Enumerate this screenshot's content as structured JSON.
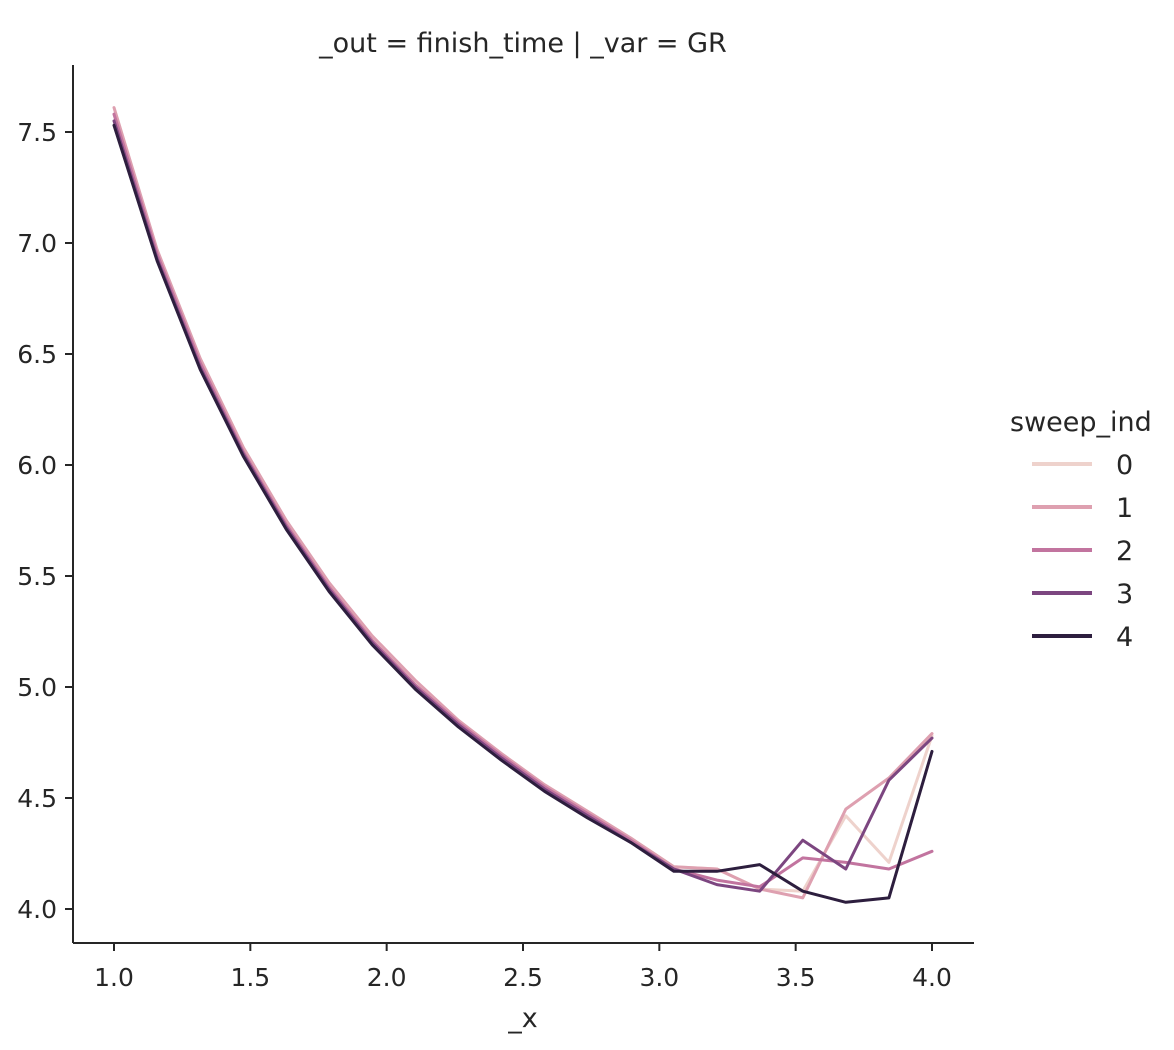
{
  "chart_data": {
    "type": "line",
    "title": "_out = finish_time | _var = GR",
    "xlabel": "_x",
    "ylabel": "",
    "xlim": [
      0.85,
      4.15
    ],
    "ylim": [
      3.85,
      7.8
    ],
    "xticks": [
      "1.0",
      "1.5",
      "2.0",
      "2.5",
      "3.0",
      "3.5",
      "4.0"
    ],
    "yticks": [
      "4.0",
      "4.5",
      "5.0",
      "5.5",
      "6.0",
      "6.5",
      "7.0",
      "7.5"
    ],
    "grid": false,
    "legend": {
      "title": "sweep_ind",
      "position": "right"
    },
    "x": [
      1.0,
      1.158,
      1.316,
      1.474,
      1.632,
      1.789,
      1.947,
      2.105,
      2.263,
      2.421,
      2.579,
      2.737,
      2.895,
      3.053,
      3.211,
      3.368,
      3.526,
      3.684,
      3.842,
      4.0
    ],
    "series": [
      {
        "name": "0",
        "color": "#eed2cc",
        "values": [
          7.58,
          6.95,
          6.46,
          6.06,
          5.73,
          5.45,
          5.21,
          5.01,
          4.84,
          4.69,
          4.55,
          4.43,
          4.32,
          4.19,
          4.18,
          4.09,
          4.08,
          4.42,
          4.21,
          4.78
        ]
      },
      {
        "name": "1",
        "color": "#dea0b0",
        "values": [
          7.61,
          6.97,
          6.48,
          6.08,
          5.75,
          5.47,
          5.23,
          5.03,
          4.85,
          4.7,
          4.56,
          4.44,
          4.32,
          4.19,
          4.18,
          4.09,
          4.05,
          4.45,
          4.59,
          4.79
        ]
      },
      {
        "name": "2",
        "color": "#c2749f",
        "values": [
          7.58,
          6.95,
          6.46,
          6.06,
          5.73,
          5.45,
          5.21,
          5.01,
          4.84,
          4.69,
          4.55,
          4.43,
          4.31,
          4.18,
          4.13,
          4.1,
          4.23,
          4.21,
          4.18,
          4.26
        ]
      },
      {
        "name": "3",
        "color": "#7c4680",
        "values": [
          7.55,
          6.93,
          6.44,
          6.05,
          5.72,
          5.44,
          5.2,
          5.0,
          4.83,
          4.68,
          4.54,
          4.42,
          4.3,
          4.18,
          4.11,
          4.08,
          4.31,
          4.18,
          4.58,
          4.77
        ]
      },
      {
        "name": "4",
        "color": "#2d1e3e",
        "values": [
          7.53,
          6.92,
          6.43,
          6.04,
          5.71,
          5.43,
          5.19,
          4.99,
          4.82,
          4.67,
          4.53,
          4.41,
          4.3,
          4.17,
          4.17,
          4.2,
          4.08,
          4.03,
          4.05,
          4.71
        ]
      }
    ]
  }
}
